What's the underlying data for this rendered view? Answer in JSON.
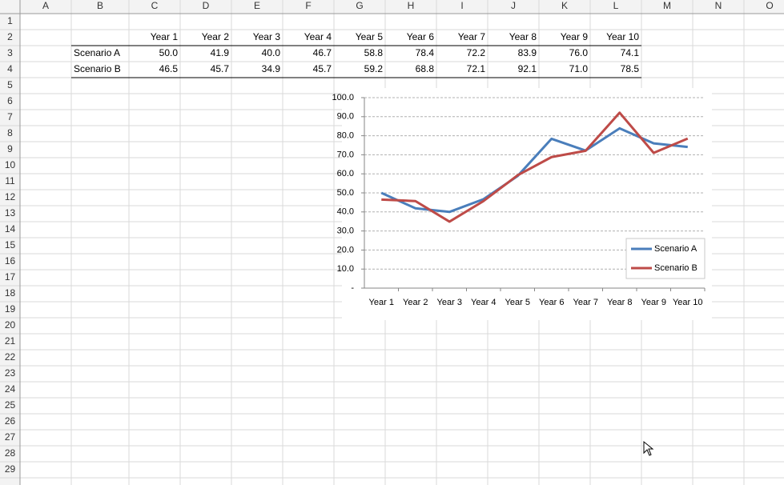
{
  "sheet": {
    "columns": [
      "A",
      "B",
      "C",
      "D",
      "E",
      "F",
      "G",
      "H",
      "I",
      "J",
      "K",
      "L",
      "M",
      "N",
      "O"
    ],
    "rows": [
      1,
      2,
      3,
      4,
      5,
      6,
      7,
      8,
      9,
      10,
      11,
      12,
      13,
      14,
      15,
      16,
      17,
      18,
      19,
      20,
      21,
      22,
      23,
      24,
      25,
      26,
      27,
      28,
      29
    ]
  },
  "table": {
    "header": [
      "Year 1",
      "Year 2",
      "Year 3",
      "Year 4",
      "Year 5",
      "Year 6",
      "Year 7",
      "Year 8",
      "Year 9",
      "Year 10"
    ],
    "rows": [
      [
        "Scenario A",
        "50.0",
        "41.9",
        "40.0",
        "46.7",
        "58.8",
        "78.4",
        "72.2",
        "83.9",
        "76.0",
        "74.1"
      ],
      [
        "Scenario B",
        "46.5",
        "45.7",
        "34.9",
        "45.7",
        "59.2",
        "68.8",
        "72.1",
        "92.1",
        "71.0",
        "78.5"
      ]
    ]
  },
  "chart_data": {
    "type": "line",
    "categories": [
      "Year 1",
      "Year 2",
      "Year 3",
      "Year 4",
      "Year 5",
      "Year 6",
      "Year 7",
      "Year 8",
      "Year 9",
      "Year 10"
    ],
    "series": [
      {
        "name": "Scenario A",
        "color": "#4a7ebb",
        "values": [
          50.0,
          41.9,
          40.0,
          46.7,
          58.8,
          78.4,
          72.2,
          83.9,
          76.0,
          74.1
        ]
      },
      {
        "name": "Scenario B",
        "color": "#be4b48",
        "values": [
          46.5,
          45.7,
          34.9,
          45.7,
          59.2,
          68.8,
          72.1,
          92.1,
          71.0,
          78.5
        ]
      }
    ],
    "ylim": [
      0,
      100
    ],
    "yticks": [
      {
        "value": 0,
        "label": "-"
      },
      {
        "value": 10,
        "label": "10.0"
      },
      {
        "value": 20,
        "label": "20.0"
      },
      {
        "value": 30,
        "label": "30.0"
      },
      {
        "value": 40,
        "label": "40.0"
      },
      {
        "value": 50,
        "label": "50.0"
      },
      {
        "value": 60,
        "label": "60.0"
      },
      {
        "value": 70,
        "label": "70.0"
      },
      {
        "value": 80,
        "label": "80.0"
      },
      {
        "value": 90,
        "label": "90.0"
      },
      {
        "value": 100,
        "label": "100.0"
      }
    ],
    "grid": true,
    "legend": "bottom-right"
  }
}
